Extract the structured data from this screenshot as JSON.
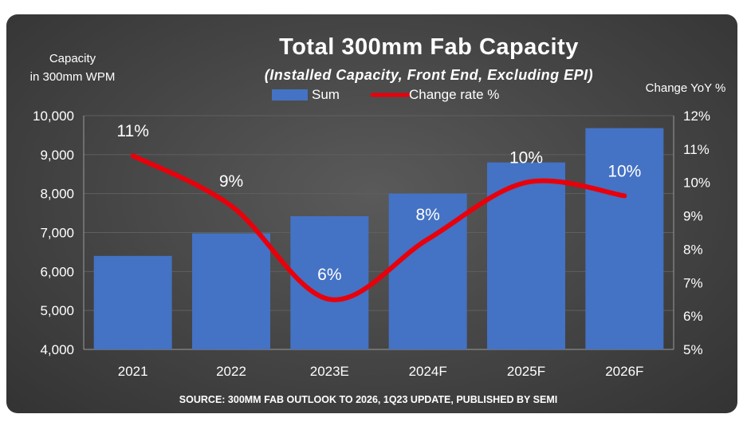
{
  "chart_data": {
    "type": "bar",
    "title": "Total 300mm Fab Capacity",
    "subtitle": "(Installed Capacity, Front End, Excluding EPI)",
    "ylabel_left": [
      "Capacity",
      "in 300mm WPM"
    ],
    "ylabel_right": "Change YoY %",
    "categories": [
      "2021",
      "2022",
      "2023E",
      "2024F",
      "2025F",
      "2026F"
    ],
    "series": [
      {
        "name": "Sum",
        "type": "bar",
        "axis": "left",
        "color": "#4472c4",
        "values": [
          6400,
          6980,
          7420,
          8000,
          8800,
          9680
        ]
      },
      {
        "name": "Change rate %",
        "type": "line",
        "axis": "right",
        "color": "#e8000b",
        "values": [
          10.8,
          9.3,
          6.5,
          8.3,
          10.0,
          9.6
        ],
        "labels": [
          "11%",
          "9%",
          "6%",
          "8%",
          "10%",
          "10%"
        ]
      }
    ],
    "y_left": {
      "min": 4000,
      "max": 10000,
      "step": 1000,
      "ticks": [
        "4,000",
        "5,000",
        "6,000",
        "7,000",
        "8,000",
        "9,000",
        "10,000"
      ]
    },
    "y_right": {
      "min": 5,
      "max": 12,
      "step": 1,
      "ticks": [
        "5%",
        "6%",
        "7%",
        "8%",
        "9%",
        "10%",
        "11%",
        "12%"
      ]
    },
    "legend_position": "top-center",
    "grid": true,
    "source": "SOURCE: 300MM FAB OUTLOOK TO 2026, 1Q23 UPDATE, PUBLISHED BY SEMI"
  }
}
